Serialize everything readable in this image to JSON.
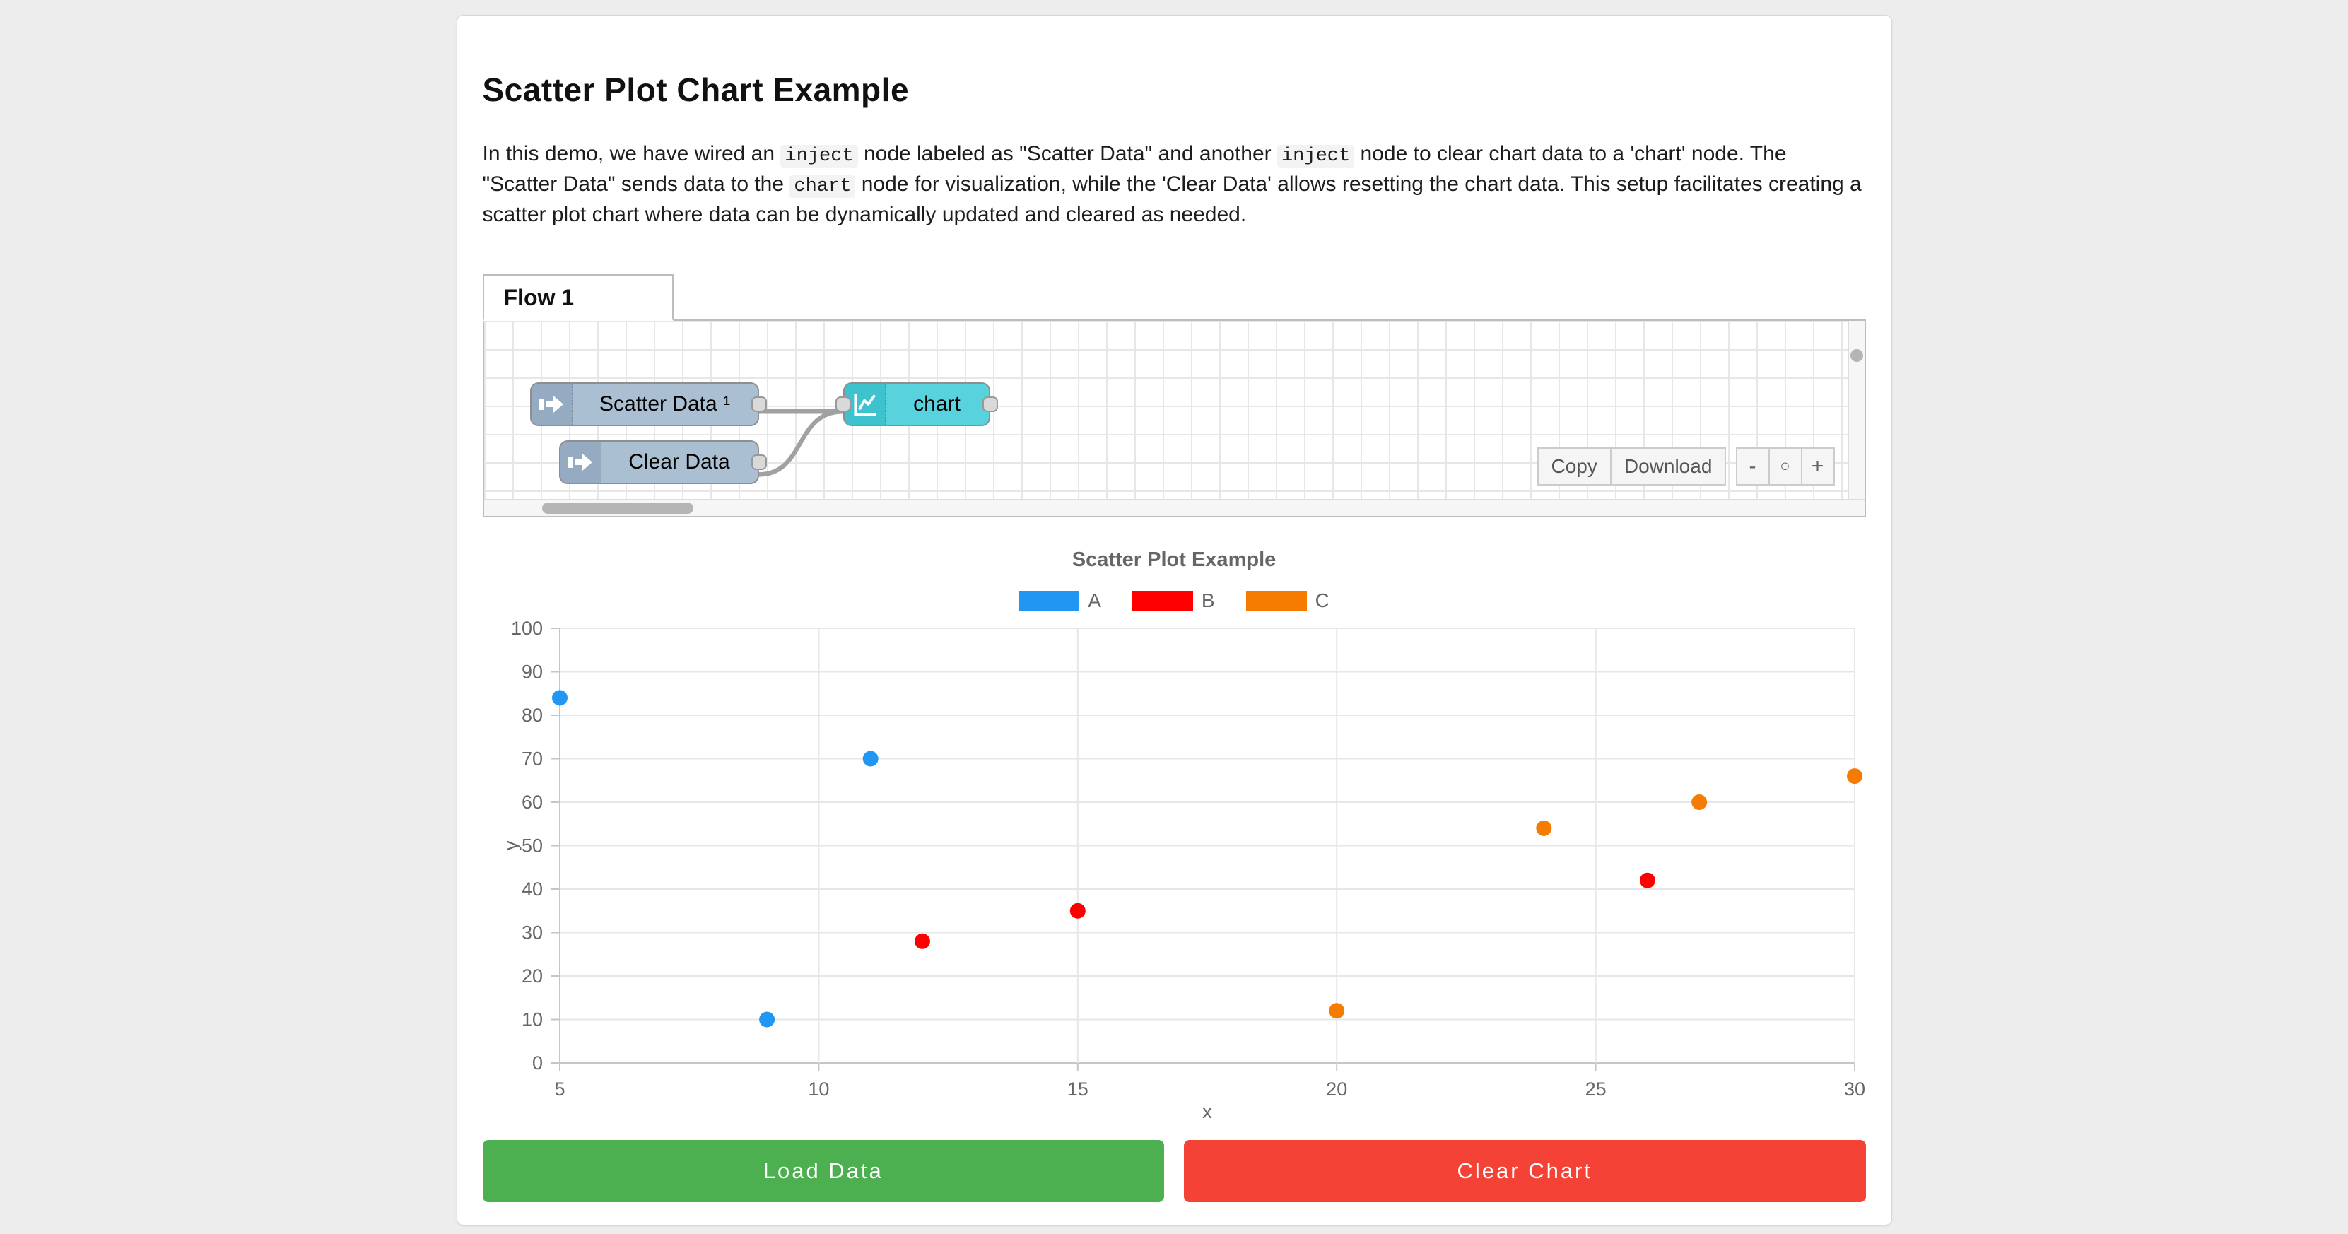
{
  "page": {
    "background": "#ededed",
    "card_background": "#ffffff"
  },
  "header": {
    "title": "Scatter Plot Chart Example"
  },
  "intro": {
    "segments": [
      {
        "code": false,
        "text": "In this demo, we have wired an "
      },
      {
        "code": true,
        "text": "inject"
      },
      {
        "code": false,
        "text": " node labeled as \"Scatter Data\" and another "
      },
      {
        "code": true,
        "text": "inject"
      },
      {
        "code": false,
        "text": " node to clear chart data to a 'chart' node. The \"Scatter Data\" sends data to the "
      },
      {
        "code": true,
        "text": "chart"
      },
      {
        "code": false,
        "text": " node for visualization, while the 'Clear Data' allows resetting the chart data. This setup facilitates creating a scatter plot chart where data can be dynamically updated and cleared as needed."
      }
    ]
  },
  "flow": {
    "tab_label": "Flow 1",
    "nodes": [
      {
        "label": "Scatter Data ¹",
        "type": "inject"
      },
      {
        "label": "Clear Data",
        "type": "inject"
      },
      {
        "label": "chart",
        "type": "chart"
      }
    ],
    "inject_color": "#abbfd3",
    "inject_icon_color": "#95abc2",
    "chart_node_color": "#58d2dc",
    "chart_node_icon_color": "#3ec2ce",
    "toolbar": {
      "copy_label": "Copy",
      "download_label": "Download"
    },
    "zoom_controls": {
      "zoom_out_label": "-",
      "zoom_reset_label": "○",
      "zoom_in_label": "+"
    }
  },
  "chart_data": {
    "type": "scatter",
    "title": "Scatter Plot Example",
    "xlabel": "x",
    "ylabel": "y",
    "xlim": [
      5,
      30
    ],
    "ylim": [
      0,
      100
    ],
    "x_ticks": [
      5,
      10,
      15,
      20,
      25,
      30
    ],
    "y_ticks": [
      0,
      10,
      20,
      30,
      40,
      50,
      60,
      70,
      80,
      90,
      100
    ],
    "grid": true,
    "legend_position": "top",
    "series": [
      {
        "name": "A",
        "color": "#2196f3",
        "points": [
          [
            5,
            84
          ],
          [
            11,
            70
          ],
          [
            9,
            10
          ]
        ]
      },
      {
        "name": "B",
        "color": "#ff0000",
        "points": [
          [
            12,
            28
          ],
          [
            15,
            35
          ],
          [
            26,
            42
          ]
        ]
      },
      {
        "name": "C",
        "color": "#f57c00",
        "points": [
          [
            20,
            12
          ],
          [
            24,
            54
          ],
          [
            27,
            60
          ],
          [
            30,
            66
          ]
        ]
      }
    ]
  },
  "actions": {
    "load_label": "Load Data",
    "load_color": "#4caf50",
    "clear_label": "Clear Chart",
    "clear_color": "#f44336"
  }
}
